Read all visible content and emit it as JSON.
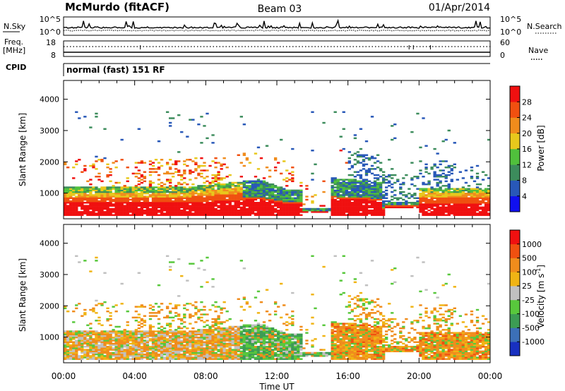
{
  "header": {
    "station": "McMurdo (fitACF)",
    "beam": "Beam 03",
    "date": "01/Apr/2014"
  },
  "noise_panel": {
    "left_label": "N.Sky",
    "left_ticks": [
      "10^5",
      "10^0"
    ],
    "right_ticks": [
      "10^5",
      "10^0"
    ],
    "right_label": "N.Search"
  },
  "freq_panel": {
    "left_label_1": "Freq.",
    "left_label_2": "[MHz]",
    "left_ticks": [
      "18",
      "8"
    ],
    "right_ticks": [
      "60",
      "0"
    ],
    "right_label": "Nave"
  },
  "cpid_panel": {
    "label": "CPID",
    "value": "normal (fast) 151 RF"
  },
  "chart_data": [
    {
      "type": "heatmap",
      "name": "power",
      "ylabel": "Slant Range [km]",
      "xlim": [
        "00:00",
        "24:00"
      ],
      "ylim": [
        180,
        4600
      ],
      "y_ticks": [
        "1000",
        "2000",
        "3000",
        "4000"
      ],
      "colorbar": {
        "label": "Power [dB]",
        "ticks": [
          "4",
          "8",
          "12",
          "16",
          "20",
          "24",
          "28"
        ],
        "colors": [
          "#1010f0",
          "#2858b8",
          "#3c8c5c",
          "#50c03c",
          "#e8c81c",
          "#f08c1c",
          "#f05010",
          "#f01010"
        ]
      }
    },
    {
      "type": "heatmap",
      "name": "velocity",
      "xlabel": "Time UT",
      "ylabel": "Slant Range [km]",
      "xlim": [
        "00:00",
        "24:00"
      ],
      "ylim": [
        180,
        4600
      ],
      "x_ticks": [
        "00:00",
        "04:00",
        "08:00",
        "12:00",
        "16:00",
        "20:00",
        "00:00"
      ],
      "y_ticks": [
        "1000",
        "2000",
        "3000",
        "4000"
      ],
      "colorbar": {
        "label": "Velocity [m s",
        "label_sup": "-1",
        "label_end": "]",
        "ticks": [
          "1000",
          "500",
          "100",
          "25",
          "-25",
          "-100",
          "-500",
          "-1000"
        ],
        "colors": [
          "#1830c0",
          "#3c70b8",
          "#3c9c54",
          "#58c83c",
          "#c0c0c0",
          "#f0b414",
          "#f08c1c",
          "#f05010",
          "#f01010"
        ]
      }
    }
  ]
}
